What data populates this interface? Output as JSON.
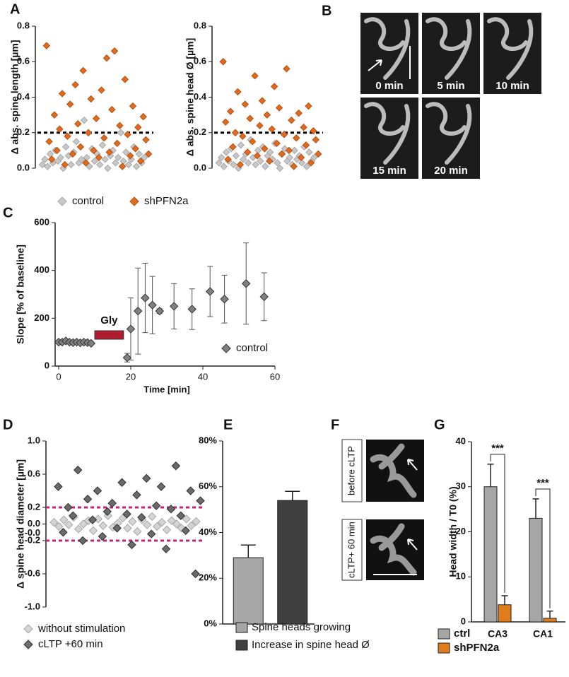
{
  "panel_labels": [
    "A",
    "B",
    "C",
    "D",
    "E",
    "F",
    "G"
  ],
  "chart_data": [
    {
      "type": "scatter",
      "ylabel": "Δ abs. spine length [µm]",
      "ylim": [
        0,
        0.8
      ],
      "yticks": [
        {
          "value": 0,
          "label": "0.0"
        },
        0.2,
        0.4,
        0.6,
        0.8
      ],
      "threshold": 0.2,
      "series": [
        {
          "name": "control",
          "color": "#c8c8c8",
          "values": [
            0.02,
            0.05,
            0.01,
            0.08,
            0.03,
            0.1,
            0.04,
            0.06,
            0.0,
            0.12,
            0.07,
            0.02,
            0.09,
            0.15,
            0.03,
            0.05,
            0.27,
            0.06,
            0.01,
            0.11,
            0.04,
            0.08,
            0.02,
            0.13,
            0.05,
            0.0,
            0.07,
            0.1,
            0.03,
            0.06,
            0.2,
            0.04,
            0.09,
            0.02,
            0.05,
            0.12,
            0.01,
            0.08,
            0.03,
            0.06
          ]
        },
        {
          "name": "shPFN2a",
          "color": "#e06a1f",
          "values": [
            0.69,
            0.15,
            0.05,
            0.3,
            0.1,
            0.22,
            0.42,
            0.02,
            0.18,
            0.36,
            0.08,
            0.47,
            0.25,
            0.12,
            0.55,
            0.03,
            0.2,
            0.39,
            0.1,
            0.28,
            0.06,
            0.44,
            0.17,
            0.62,
            0.09,
            0.33,
            0.66,
            0.14,
            0.24,
            0.01,
            0.5,
            0.19,
            0.07,
            0.35,
            0.11,
            0.23,
            0.04,
            0.29,
            0.16,
            0.08
          ]
        }
      ]
    },
    {
      "type": "scatter",
      "ylabel": "Δ abs. spine head Ø [µm]",
      "ylim": [
        0,
        0.8
      ],
      "yticks": [
        {
          "value": 0,
          "label": "0.0"
        },
        0.2,
        0.4,
        0.6,
        0.8
      ],
      "threshold": 0.2,
      "series": [
        {
          "color": "#c8c8c8",
          "values": [
            0.03,
            0.06,
            0.01,
            0.09,
            0.04,
            0.11,
            0.02,
            0.07,
            0.0,
            0.13,
            0.05,
            0.08,
            0.03,
            0.16,
            0.06,
            0.02,
            0.1,
            0.04,
            0.12,
            0.01,
            0.07,
            0.09,
            0.05,
            0.14,
            0.03,
            0.0,
            0.08,
            0.11,
            0.04,
            0.06,
            0.02,
            0.1,
            0.05,
            0.07,
            0.03,
            0.12,
            0.01,
            0.09,
            0.04,
            0.06
          ]
        },
        {
          "color": "#e06a1f",
          "values": [
            0.6,
            0.26,
            0.05,
            0.32,
            0.12,
            0.2,
            0.43,
            0.02,
            0.18,
            0.36,
            0.09,
            0.28,
            0.15,
            0.52,
            0.07,
            0.24,
            0.38,
            0.11,
            0.3,
            0.04,
            0.22,
            0.46,
            0.14,
            0.34,
            0.08,
            0.19,
            0.56,
            0.1,
            0.27,
            0.01,
            0.17,
            0.31,
            0.06,
            0.23,
            0.13,
            0.35,
            0.03,
            0.21,
            0.16,
            0.08
          ]
        }
      ]
    },
    {
      "type": "scatter",
      "xlabel": "Time [min]",
      "ylabel": "Slope [% of baseline]",
      "xlim": [
        0,
        60
      ],
      "xticks": [
        0,
        20,
        40,
        60
      ],
      "ylim": [
        0,
        600
      ],
      "yticks": [
        0,
        200,
        400,
        600
      ],
      "series": [
        {
          "name": "control",
          "color": "#808080",
          "x": [
            0,
            1,
            2,
            3,
            4,
            5,
            6,
            7,
            8,
            9,
            19,
            20,
            22,
            24,
            26,
            28,
            32,
            37,
            42,
            46,
            52,
            57
          ],
          "values": [
            100,
            100,
            105,
            100,
            98,
            100,
            97,
            100,
            98,
            95,
            35,
            155,
            230,
            285,
            255,
            230,
            250,
            238,
            312,
            280,
            345,
            290
          ],
          "errors": [
            5,
            5,
            6,
            5,
            5,
            5,
            5,
            5,
            5,
            5,
            18,
            130,
            180,
            145,
            120,
            10,
            95,
            85,
            105,
            100,
            170,
            100
          ]
        }
      ],
      "annotation": {
        "label": "Gly",
        "x": [
          10,
          18
        ],
        "y": 130,
        "color": "#b01c2e"
      }
    },
    {
      "type": "scatter",
      "ylabel": "Δ spine head diameter [µm]",
      "ylim": [
        -1,
        1
      ],
      "yticks": [
        {
          "value": 1,
          "label": "1.0"
        },
        0.6,
        0.2,
        {
          "value": 0,
          "label": "0.0"
        },
        {
          "value": 0,
          "label": "-0.0"
        },
        -0.2,
        -0.6,
        {
          "value": -1,
          "label": "-1.0"
        }
      ],
      "thresholds": [
        0.2,
        -0.2
      ],
      "series": [
        {
          "name": "without stimulation",
          "color": "#d4d4d4",
          "values": [
            0.02,
            -0.03,
            0.05,
            -0.01,
            0.08,
            -0.06,
            0.0,
            0.04,
            -0.08,
            0.06,
            -0.02,
            0.1,
            -0.04,
            0.01,
            0.07,
            -0.05,
            0.03,
            -0.09,
            0.05,
            -0.01,
            0.09,
            -0.03,
            0.02,
            -0.07,
            0.04,
            0.0,
            -0.05,
            0.06,
            -0.02,
            0.03
          ]
        },
        {
          "name": "cLTP +60 min",
          "color": "#6a6a6a",
          "values": [
            0.45,
            -0.1,
            0.2,
            0.1,
            0.65,
            -0.2,
            0.3,
            0.05,
            0.4,
            -0.15,
            0.15,
            0.25,
            -0.05,
            0.5,
            0.12,
            -0.25,
            0.35,
            0.08,
            0.55,
            -0.12,
            0.22,
            0.45,
            -0.3,
            0.18,
            0.7,
            0.1,
            -0.08,
            0.4,
            -0.6,
            0.28
          ]
        }
      ]
    },
    {
      "type": "bar",
      "ylim": [
        0,
        80
      ],
      "yticks": [
        {
          "value": 0,
          "label": "0%"
        },
        {
          "value": 20,
          "label": "20%"
        },
        {
          "value": 40,
          "label": "40%"
        },
        {
          "value": 60,
          "label": "60%"
        },
        {
          "value": 80,
          "label": "80%"
        }
      ],
      "series": [
        {
          "name": "Spine heads growing",
          "color": "#a6a6a6",
          "values": [
            29
          ],
          "errors": [
            5.5
          ]
        },
        {
          "name": "Increase in spine head Ø",
          "color": "#404040",
          "values": [
            54
          ],
          "errors": [
            4
          ]
        }
      ]
    },
    {
      "type": "bar",
      "ylabel": "Head width / T0 (%)",
      "categories": [
        "CA3",
        "CA1"
      ],
      "ylim": [
        0,
        40
      ],
      "yticks": [
        0,
        10,
        20,
        30,
        40
      ],
      "series": [
        {
          "name": "ctrl",
          "color": "#a6a6a6",
          "values": [
            30,
            23
          ],
          "errors": [
            5,
            4.3
          ]
        },
        {
          "name": "shPFN2a",
          "color": "#e07d1a",
          "values": [
            3.8,
            0.8
          ],
          "errors": [
            2,
            1.6
          ]
        }
      ],
      "annotations": [
        "***",
        "***"
      ]
    }
  ],
  "images": {
    "B": [
      "0 min",
      "5 min",
      "10 min",
      "15 min",
      "20 min"
    ],
    "F": [
      "before cLTP",
      "cLTP+ 60 min"
    ]
  }
}
